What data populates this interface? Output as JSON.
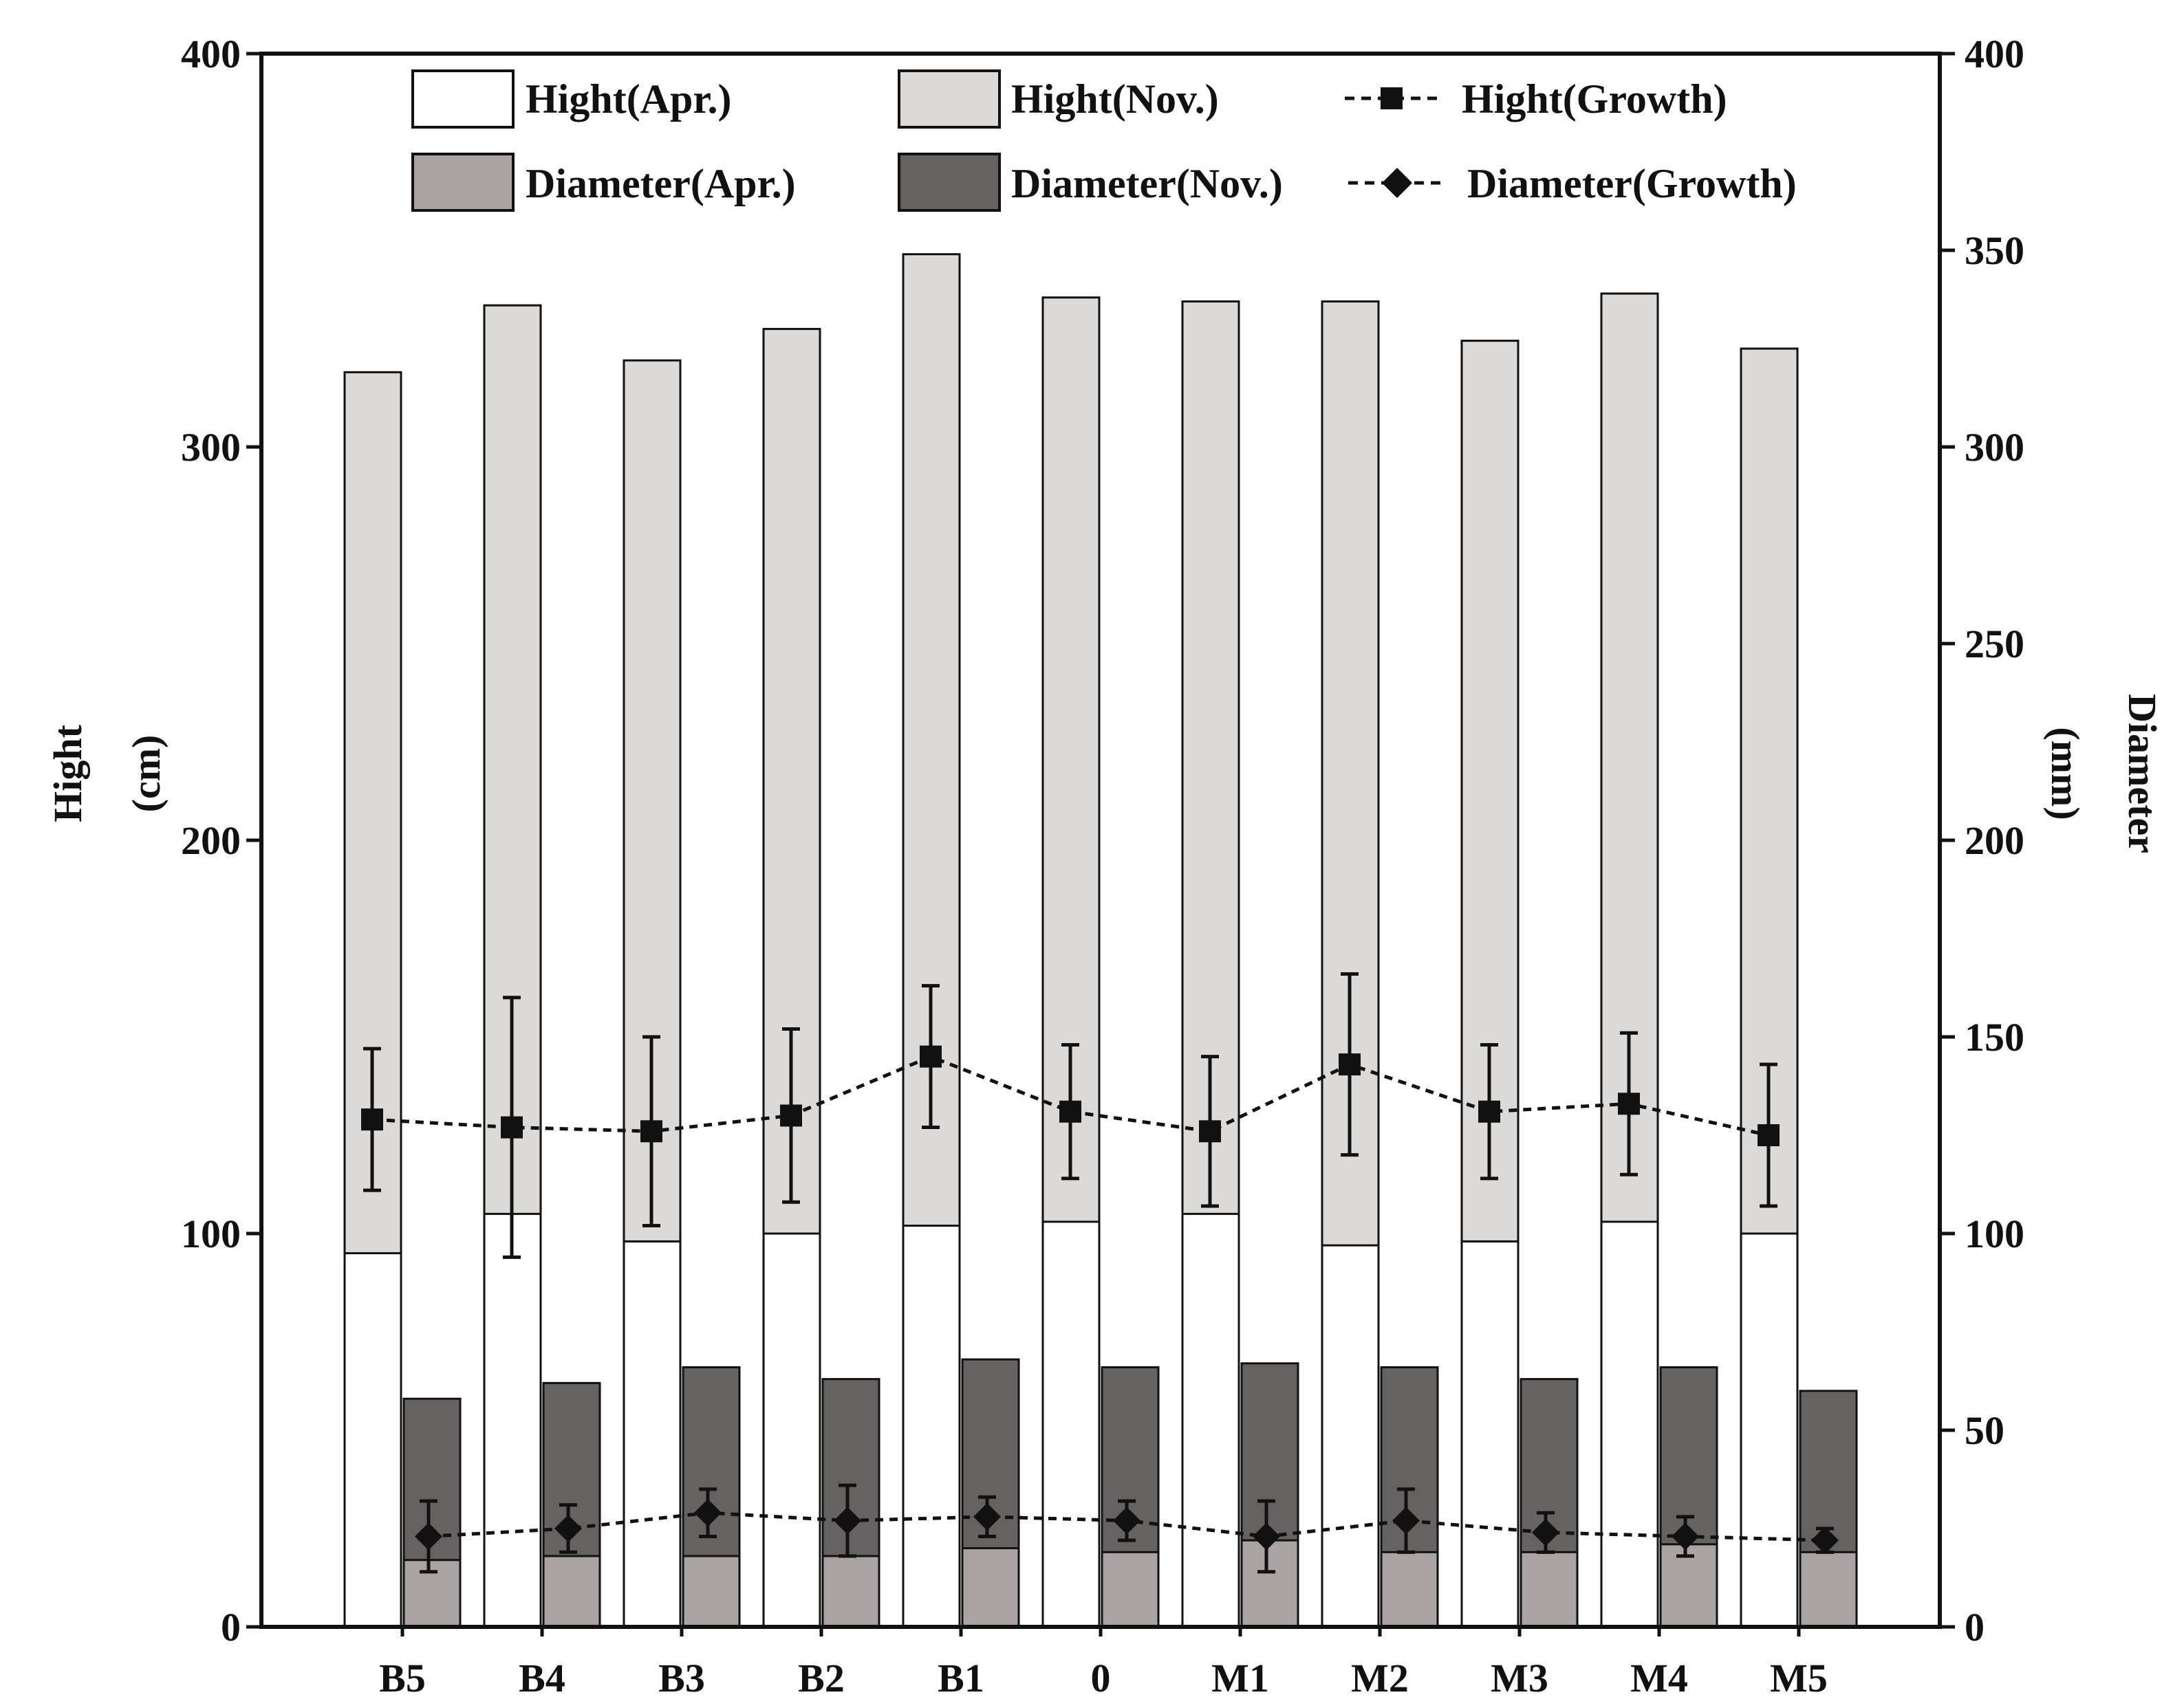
{
  "chart_data": {
    "type": "bar",
    "categories": [
      "B5",
      "B4",
      "B3",
      "B2",
      "B1",
      "0",
      "M1",
      "M2",
      "M3",
      "M4",
      "M5"
    ],
    "left_axis": {
      "label_line1": "Hight",
      "label_line2": "(cm)",
      "range": [
        0,
        400
      ],
      "ticks": [
        "0",
        "100",
        "200",
        "300",
        "400"
      ]
    },
    "right_axis": {
      "label_line1": "Diameter",
      "label_line2": "(mm)",
      "range": [
        0,
        400
      ],
      "ticks": [
        "0",
        "50",
        "100",
        "150",
        "200",
        "250",
        "300",
        "350",
        "400"
      ]
    },
    "series": [
      {
        "name": "Hight(Apr.)",
        "kind": "bar",
        "axis": "left",
        "values": [
          95,
          105,
          98,
          100,
          102,
          103,
          105,
          97,
          98,
          103,
          100
        ]
      },
      {
        "name": "Hight(Nov.)",
        "kind": "bar",
        "axis": "left",
        "values": [
          319,
          336,
          322,
          330,
          349,
          338,
          337,
          337,
          327,
          339,
          325
        ]
      },
      {
        "name": "Hight(Growth)",
        "kind": "line",
        "axis": "left",
        "values": [
          129,
          127,
          126,
          130,
          145,
          131,
          126,
          143,
          131,
          133,
          125
        ],
        "errors": [
          18,
          33,
          24,
          22,
          18,
          17,
          19,
          23,
          17,
          18,
          18
        ]
      },
      {
        "name": "Diameter(Apr.)",
        "kind": "bar",
        "axis": "right",
        "values": [
          17,
          18,
          18,
          18,
          20,
          19,
          22,
          19,
          19,
          21,
          19
        ]
      },
      {
        "name": "Diameter(Nov.)",
        "kind": "bar",
        "axis": "right",
        "values": [
          58,
          62,
          66,
          63,
          68,
          66,
          67,
          66,
          63,
          66,
          60
        ]
      },
      {
        "name": "Diameter(Growth)",
        "kind": "line",
        "axis": "right",
        "values": [
          23,
          25,
          29,
          27,
          28,
          27,
          23,
          27,
          24,
          23,
          22
        ],
        "errors": [
          9,
          6,
          6,
          9,
          5,
          5,
          9,
          8,
          5,
          5,
          3
        ]
      }
    ],
    "colors": {
      "hight_apr": "#ffffff",
      "hight_nov": "#dcdad9",
      "diameter_apr": "#aaa3a3",
      "diameter_nov": "#676262",
      "stroke": "#111111"
    },
    "legend_position": "top",
    "grid": false
  }
}
